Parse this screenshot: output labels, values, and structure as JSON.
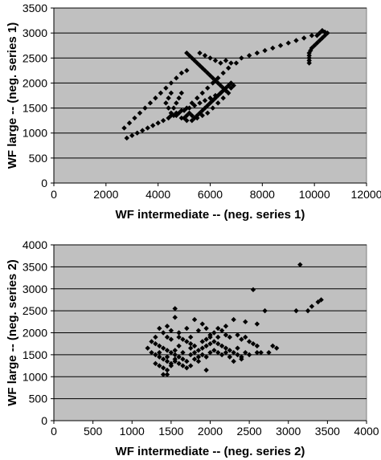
{
  "chart_data": [
    {
      "type": "scatter",
      "xlabel": "WF intermediate -- (neg. series 1)",
      "ylabel": "WF large -- (neg. series 1)",
      "xlim": [
        0,
        12000
      ],
      "ylim": [
        0,
        3500
      ],
      "xticks": [
        0,
        2000,
        4000,
        6000,
        8000,
        10000,
        12000
      ],
      "yticks": [
        0,
        500,
        1000,
        1500,
        2000,
        2500,
        3000,
        3500
      ],
      "xtick_labels": [
        "0",
        "2000",
        "4000",
        "6000",
        "8000",
        "10000",
        "12000"
      ],
      "ytick_labels": [
        "0",
        "500",
        "1000",
        "1500",
        "2000",
        "2500",
        "3000",
        "3500"
      ],
      "grid": "horizontal",
      "points": [
        [
          2800,
          900
        ],
        [
          3000,
          950
        ],
        [
          3200,
          1000
        ],
        [
          3400,
          1050
        ],
        [
          3600,
          1100
        ],
        [
          3800,
          1150
        ],
        [
          4000,
          1200
        ],
        [
          4200,
          1250
        ],
        [
          4400,
          1300
        ],
        [
          4600,
          1350
        ],
        [
          4800,
          1400
        ],
        [
          5000,
          1450
        ],
        [
          5200,
          1500
        ],
        [
          5400,
          1550
        ],
        [
          5600,
          1600
        ],
        [
          5800,
          1650
        ],
        [
          6000,
          1700
        ],
        [
          6200,
          1750
        ],
        [
          6400,
          1800
        ],
        [
          6600,
          1850
        ],
        [
          6800,
          1900
        ],
        [
          2700,
          1100
        ],
        [
          2900,
          1200
        ],
        [
          3100,
          1300
        ],
        [
          3300,
          1400
        ],
        [
          3500,
          1500
        ],
        [
          3700,
          1600
        ],
        [
          3900,
          1700
        ],
        [
          4100,
          1800
        ],
        [
          4300,
          1900
        ],
        [
          4500,
          2000
        ],
        [
          4700,
          2100
        ],
        [
          4900,
          2200
        ],
        [
          5100,
          2250
        ],
        [
          5100,
          2600
        ],
        [
          5200,
          2550
        ],
        [
          5300,
          2500
        ],
        [
          5400,
          2450
        ],
        [
          5500,
          2400
        ],
        [
          5600,
          2350
        ],
        [
          5700,
          2300
        ],
        [
          5800,
          2250
        ],
        [
          5900,
          2200
        ],
        [
          6000,
          2150
        ],
        [
          6100,
          2100
        ],
        [
          6200,
          2050
        ],
        [
          6300,
          2000
        ],
        [
          6400,
          1950
        ],
        [
          6500,
          1900
        ],
        [
          6600,
          1850
        ],
        [
          5600,
          2600
        ],
        [
          5800,
          2550
        ],
        [
          6000,
          2500
        ],
        [
          6200,
          2450
        ],
        [
          6400,
          2400
        ],
        [
          6600,
          2450
        ],
        [
          6800,
          2400
        ],
        [
          7000,
          2400
        ],
        [
          6700,
          2300
        ],
        [
          6500,
          2200
        ],
        [
          6300,
          2100
        ],
        [
          6100,
          2000
        ],
        [
          5900,
          1900
        ],
        [
          5700,
          1800
        ],
        [
          5500,
          1700
        ],
        [
          5300,
          1600
        ],
        [
          5100,
          1500
        ],
        [
          4900,
          1450
        ],
        [
          4700,
          1400
        ],
        [
          4500,
          1350
        ],
        [
          4600,
          1500
        ],
        [
          4700,
          1600
        ],
        [
          4800,
          1700
        ],
        [
          4900,
          1800
        ],
        [
          5000,
          1300
        ],
        [
          5100,
          1350
        ],
        [
          5200,
          1400
        ],
        [
          5300,
          1350
        ],
        [
          5400,
          1300
        ],
        [
          5500,
          1350
        ],
        [
          5600,
          1400
        ],
        [
          5700,
          1450
        ],
        [
          5800,
          1500
        ],
        [
          5900,
          1550
        ],
        [
          6000,
          1600
        ],
        [
          6100,
          1650
        ],
        [
          6200,
          1700
        ],
        [
          6300,
          1750
        ],
        [
          6400,
          1800
        ],
        [
          6500,
          1850
        ],
        [
          6600,
          1900
        ],
        [
          6700,
          1950
        ],
        [
          6800,
          2000
        ],
        [
          6900,
          1950
        ],
        [
          6700,
          1800
        ],
        [
          6500,
          1700
        ],
        [
          6300,
          1600
        ],
        [
          6100,
          1500
        ],
        [
          5900,
          1400
        ],
        [
          5700,
          1350
        ],
        [
          5500,
          1300
        ],
        [
          5300,
          1250
        ],
        [
          5100,
          1250
        ],
        [
          4900,
          1300
        ],
        [
          4700,
          1350
        ],
        [
          4500,
          1400
        ],
        [
          4400,
          1500
        ],
        [
          4300,
          1600
        ],
        [
          4400,
          1700
        ],
        [
          4500,
          1800
        ],
        [
          7200,
          2500
        ],
        [
          7500,
          2550
        ],
        [
          7800,
          2600
        ],
        [
          8100,
          2650
        ],
        [
          8400,
          2700
        ],
        [
          8700,
          2750
        ],
        [
          9000,
          2800
        ],
        [
          9300,
          2850
        ],
        [
          9600,
          2900
        ],
        [
          9900,
          2950
        ],
        [
          10200,
          3000
        ],
        [
          10400,
          3020
        ],
        [
          10500,
          3000
        ],
        [
          10400,
          2950
        ],
        [
          10300,
          2900
        ],
        [
          10200,
          2850
        ],
        [
          10100,
          2800
        ],
        [
          10000,
          2750
        ],
        [
          9900,
          2700
        ],
        [
          9850,
          2650
        ],
        [
          9800,
          2600
        ],
        [
          9800,
          2550
        ],
        [
          9800,
          2500
        ],
        [
          9800,
          2450
        ],
        [
          9800,
          2400
        ],
        [
          10300,
          3050
        ],
        [
          10100,
          2950
        ]
      ]
    },
    {
      "type": "scatter",
      "xlabel": "WF intermediate -- (neg. series 2)",
      "ylabel": "WF large -- (neg. series 2)",
      "xlim": [
        0,
        4000
      ],
      "ylim": [
        0,
        4000
      ],
      "xticks": [
        0,
        500,
        1000,
        1500,
        2000,
        2500,
        3000,
        3500,
        4000
      ],
      "yticks": [
        0,
        500,
        1000,
        1500,
        2000,
        2500,
        3000,
        3500,
        4000
      ],
      "xtick_labels": [
        "0",
        "500",
        "1000",
        "1500",
        "2000",
        "2500",
        "3000",
        "3500",
        "4000"
      ],
      "ytick_labels": [
        "0",
        "500",
        "1000",
        "1500",
        "2000",
        "2500",
        "3000",
        "3500",
        "4000"
      ],
      "grid": "horizontal",
      "points": [
        [
          3150,
          3550
        ],
        [
          2550,
          2980
        ],
        [
          3420,
          2750
        ],
        [
          3380,
          2700
        ],
        [
          3300,
          2600
        ],
        [
          1550,
          2550
        ],
        [
          2700,
          2500
        ],
        [
          3250,
          2500
        ],
        [
          3100,
          2500
        ],
        [
          1550,
          2350
        ],
        [
          2300,
          2300
        ],
        [
          1800,
          2300
        ],
        [
          2450,
          2250
        ],
        [
          2600,
          2200
        ],
        [
          1900,
          2200
        ],
        [
          1200,
          1650
        ],
        [
          1350,
          2100
        ],
        [
          1450,
          2150
        ],
        [
          1500,
          2050
        ],
        [
          1600,
          2000
        ],
        [
          1700,
          2100
        ],
        [
          1750,
          1900
        ],
        [
          1850,
          2050
        ],
        [
          1950,
          2100
        ],
        [
          2000,
          1950
        ],
        [
          2050,
          2000
        ],
        [
          2100,
          1900
        ],
        [
          2150,
          2050
        ],
        [
          2200,
          1950
        ],
        [
          2250,
          1900
        ],
        [
          2350,
          1950
        ],
        [
          2400,
          1850
        ],
        [
          2450,
          1900
        ],
        [
          2500,
          1800
        ],
        [
          2550,
          1750
        ],
        [
          2600,
          1700
        ],
        [
          1250,
          1800
        ],
        [
          1300,
          1750
        ],
        [
          1350,
          1700
        ],
        [
          1400,
          1650
        ],
        [
          1450,
          1600
        ],
        [
          1500,
          1550
        ],
        [
          1550,
          1500
        ],
        [
          1600,
          1450
        ],
        [
          1650,
          1400
        ],
        [
          1700,
          1350
        ],
        [
          1750,
          1500
        ],
        [
          1800,
          1550
        ],
        [
          1850,
          1600
        ],
        [
          1900,
          1650
        ],
        [
          1950,
          1700
        ],
        [
          2000,
          1750
        ],
        [
          2050,
          1800
        ],
        [
          2100,
          1750
        ],
        [
          2150,
          1700
        ],
        [
          2200,
          1650
        ],
        [
          2250,
          1600
        ],
        [
          2300,
          1550
        ],
        [
          2350,
          1500
        ],
        [
          2400,
          1450
        ],
        [
          1300,
          1500
        ],
        [
          1350,
          1450
        ],
        [
          1400,
          1400
        ],
        [
          1450,
          1350
        ],
        [
          1500,
          1300
        ],
        [
          1350,
          1250
        ],
        [
          1300,
          1300
        ],
        [
          1400,
          1200
        ],
        [
          1450,
          1150
        ],
        [
          1500,
          1250
        ],
        [
          1550,
          1350
        ],
        [
          1600,
          1300
        ],
        [
          1650,
          1250
        ],
        [
          1700,
          1200
        ],
        [
          1750,
          1250
        ],
        [
          1800,
          1400
        ],
        [
          1850,
          1450
        ],
        [
          1900,
          1500
        ],
        [
          2000,
          1550
        ],
        [
          2050,
          1600
        ],
        [
          2100,
          1550
        ],
        [
          2150,
          1500
        ],
        [
          2200,
          1550
        ],
        [
          2250,
          1450
        ],
        [
          1950,
          1150
        ],
        [
          2350,
          1650
        ],
        [
          2450,
          1550
        ],
        [
          2600,
          1550
        ],
        [
          2650,
          1550
        ],
        [
          2750,
          1550
        ],
        [
          2800,
          1700
        ],
        [
          2850,
          1650
        ],
        [
          1400,
          1050
        ],
        [
          1450,
          1050
        ],
        [
          1600,
          1900
        ],
        [
          1650,
          1850
        ],
        [
          1700,
          1800
        ],
        [
          1750,
          1750
        ],
        [
          1800,
          1700
        ],
        [
          1900,
          1800
        ],
        [
          1950,
          1850
        ],
        [
          2000,
          1900
        ],
        [
          2100,
          2100
        ],
        [
          2200,
          2150
        ],
        [
          1550,
          1600
        ],
        [
          1600,
          1700
        ],
        [
          1500,
          1850
        ],
        [
          1450,
          1900
        ],
        [
          1400,
          2000
        ],
        [
          1300,
          1900
        ],
        [
          1250,
          1550
        ],
        [
          1350,
          1550
        ],
        [
          1450,
          1450
        ],
        [
          1550,
          1400
        ],
        [
          1650,
          1550
        ],
        [
          1750,
          1650
        ],
        [
          2300,
          1350
        ],
        [
          2400,
          1400
        ],
        [
          2500,
          1500
        ],
        [
          1850,
          1350
        ],
        [
          1950,
          1450
        ]
      ]
    }
  ]
}
